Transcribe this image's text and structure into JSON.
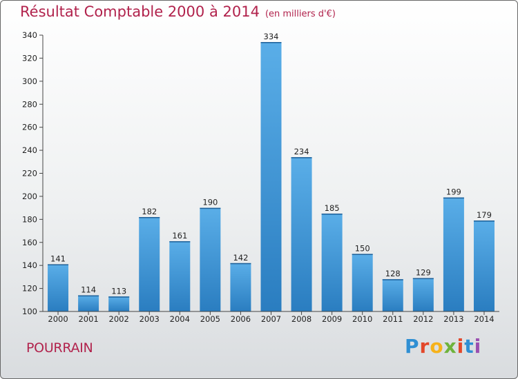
{
  "title": {
    "main": "Résultat Comptable 2000 à 2014",
    "unit": "(en milliers d'€)"
  },
  "commune": "POURRAIN",
  "logo": {
    "text": "Proxiti",
    "letters": [
      "P",
      "r",
      "o",
      "x",
      "i",
      "t",
      "i"
    ]
  },
  "colors": {
    "accent": "#b1224c",
    "bar_light": "#5aaee8",
    "bar_dark": "#2a7dc0"
  },
  "chart_data": {
    "type": "bar",
    "title": "Résultat Comptable 2000 à 2014",
    "ylabel": "en milliers d'€",
    "xlabel": "",
    "categories": [
      "2000",
      "2001",
      "2002",
      "2003",
      "2004",
      "2005",
      "2006",
      "2007",
      "2008",
      "2009",
      "2010",
      "2011",
      "2012",
      "2013",
      "2014"
    ],
    "values": [
      141,
      114,
      113,
      182,
      161,
      190,
      142,
      334,
      234,
      185,
      150,
      128,
      129,
      199,
      179
    ],
    "ylim": [
      100,
      340
    ],
    "yticks": [
      100,
      120,
      140,
      160,
      180,
      200,
      220,
      240,
      260,
      280,
      300,
      320,
      340
    ],
    "grid": false
  }
}
